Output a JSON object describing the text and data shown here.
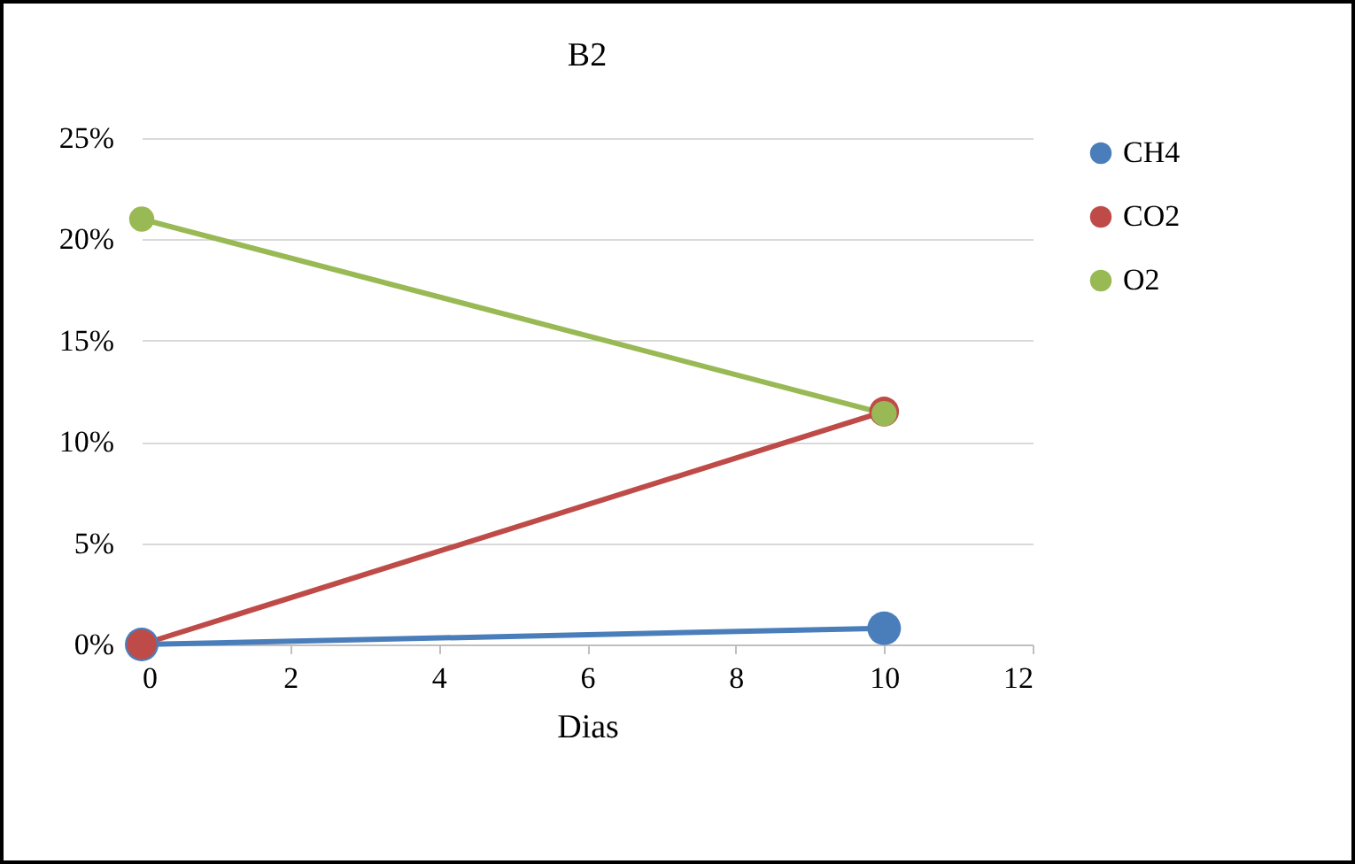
{
  "chart_data": {
    "type": "line",
    "title": "B2",
    "xlabel": "Dias",
    "x": [
      0,
      10
    ],
    "series": [
      {
        "name": "CH4",
        "color": "#4a7ebb",
        "values": [
          0,
          0.8
        ]
      },
      {
        "name": "CO2",
        "color": "#be4b48",
        "values": [
          0,
          11.5
        ]
      },
      {
        "name": "O2",
        "color": "#98b954",
        "values": [
          21,
          11.4
        ]
      }
    ],
    "xlim": [
      0,
      12
    ],
    "xticks": [
      0,
      2,
      4,
      6,
      8,
      10,
      12
    ],
    "ylim": [
      0,
      25
    ],
    "yticks": [
      {
        "value": 0,
        "label": "0%"
      },
      {
        "value": 5,
        "label": "5%"
      },
      {
        "value": 10,
        "label": "10%"
      },
      {
        "value": 15,
        "label": "15%"
      },
      {
        "value": 20,
        "label": "20%"
      },
      {
        "value": 25,
        "label": "25%"
      }
    ],
    "grid": "y",
    "legend": "right",
    "marker": "circle",
    "line_style": "solid"
  }
}
